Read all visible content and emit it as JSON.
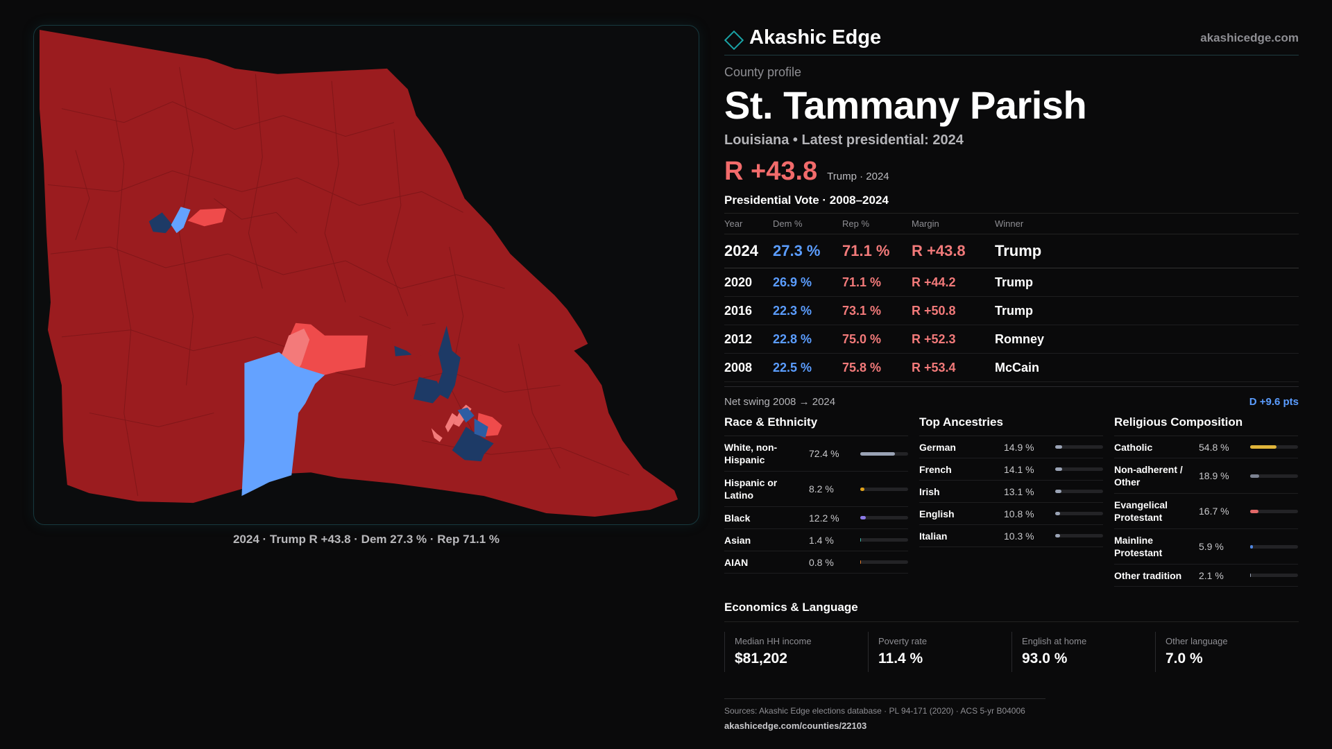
{
  "map": {
    "caption": "2024 · Trump R +43.8 · Dem 27.3 % · Rep 71.1 %",
    "colors": {
      "solid_rep": "#9b1c1f",
      "lean_rep": "#ef4b4b",
      "light_rep": "#f37a7a",
      "solid_dem": "#1d3a66",
      "lean_dem": "#2d5da3",
      "light_dem": "#64a2ff"
    }
  },
  "brand": {
    "name": "Akashic Edge",
    "url": "akashicedge.com"
  },
  "profile": {
    "eyebrow": "County profile",
    "title": "St. Tammany Parish",
    "subtitle": "Louisiana • Latest presidential: 2024",
    "headline_margin": "R +43.8",
    "headline_meta": "Trump · 2024"
  },
  "presidential": {
    "title": "Presidential Vote · 2008–2024",
    "columns": [
      "Year",
      "Dem %",
      "Rep %",
      "Margin",
      "Winner"
    ],
    "rows": [
      {
        "year": "2024",
        "dem": "27.3 %",
        "rep": "71.1 %",
        "margin": "R +43.8",
        "winner": "Trump"
      },
      {
        "year": "2020",
        "dem": "26.9 %",
        "rep": "71.1 %",
        "margin": "R +44.2",
        "winner": "Trump"
      },
      {
        "year": "2016",
        "dem": "22.3 %",
        "rep": "73.1 %",
        "margin": "R +50.8",
        "winner": "Trump"
      },
      {
        "year": "2012",
        "dem": "22.8 %",
        "rep": "75.0 %",
        "margin": "R +52.3",
        "winner": "Romney"
      },
      {
        "year": "2008",
        "dem": "22.5 %",
        "rep": "75.8 %",
        "margin": "R +53.4",
        "winner": "McCain"
      }
    ],
    "swing_label": "Net swing 2008 → 2024",
    "swing_value": "D +9.6 pts"
  },
  "race": {
    "title": "Race & Ethnicity",
    "rows": [
      {
        "label": "White, non-Hispanic",
        "value": "72.4 %",
        "pct": 72.4,
        "color": "#9aa3b5"
      },
      {
        "label": "Hispanic or Latino",
        "value": "8.2 %",
        "pct": 8.2,
        "color": "#e0a21b"
      },
      {
        "label": "Black",
        "value": "12.2 %",
        "pct": 12.2,
        "color": "#8b79e6"
      },
      {
        "label": "Asian",
        "value": "1.4 %",
        "pct": 1.4,
        "color": "#3fb6a8"
      },
      {
        "label": "AIAN",
        "value": "0.8 %",
        "pct": 0.8,
        "color": "#e07a2c"
      }
    ]
  },
  "ancestry": {
    "title": "Top Ancestries",
    "rows": [
      {
        "label": "German",
        "value": "14.9 %",
        "pct": 14.9,
        "color": "#9aa3b5"
      },
      {
        "label": "French",
        "value": "14.1 %",
        "pct": 14.1,
        "color": "#9aa3b5"
      },
      {
        "label": "Irish",
        "value": "13.1 %",
        "pct": 13.1,
        "color": "#9aa3b5"
      },
      {
        "label": "English",
        "value": "10.8 %",
        "pct": 10.8,
        "color": "#9aa3b5"
      },
      {
        "label": "Italian",
        "value": "10.3 %",
        "pct": 10.3,
        "color": "#9aa3b5"
      }
    ]
  },
  "religion": {
    "title": "Religious Composition",
    "rows": [
      {
        "label": "Catholic",
        "value": "54.8 %",
        "pct": 54.8,
        "color": "#e0b43a"
      },
      {
        "label": "Non-adherent / Other",
        "value": "18.9 %",
        "pct": 18.9,
        "color": "#7c8291"
      },
      {
        "label": "Evangelical Protestant",
        "value": "16.7 %",
        "pct": 16.7,
        "color": "#e26868"
      },
      {
        "label": "Mainline Protestant",
        "value": "5.9 %",
        "pct": 5.9,
        "color": "#4f86e0"
      },
      {
        "label": "Other tradition",
        "value": "2.1 %",
        "pct": 2.1,
        "color": "#9aa3b5"
      }
    ]
  },
  "economics": {
    "title": "Economics & Language",
    "cells": [
      {
        "label": "Median HH income",
        "value": "$81,202"
      },
      {
        "label": "Poverty rate",
        "value": "11.4 %"
      },
      {
        "label": "English at home",
        "value": "93.0 %"
      },
      {
        "label": "Other language",
        "value": "7.0 %"
      }
    ]
  },
  "sources": {
    "text": "Sources: Akashic Edge elections database · PL 94-171 (2020) · ACS 5-yr B04006",
    "url": "akashicedge.com/counties/22103"
  }
}
